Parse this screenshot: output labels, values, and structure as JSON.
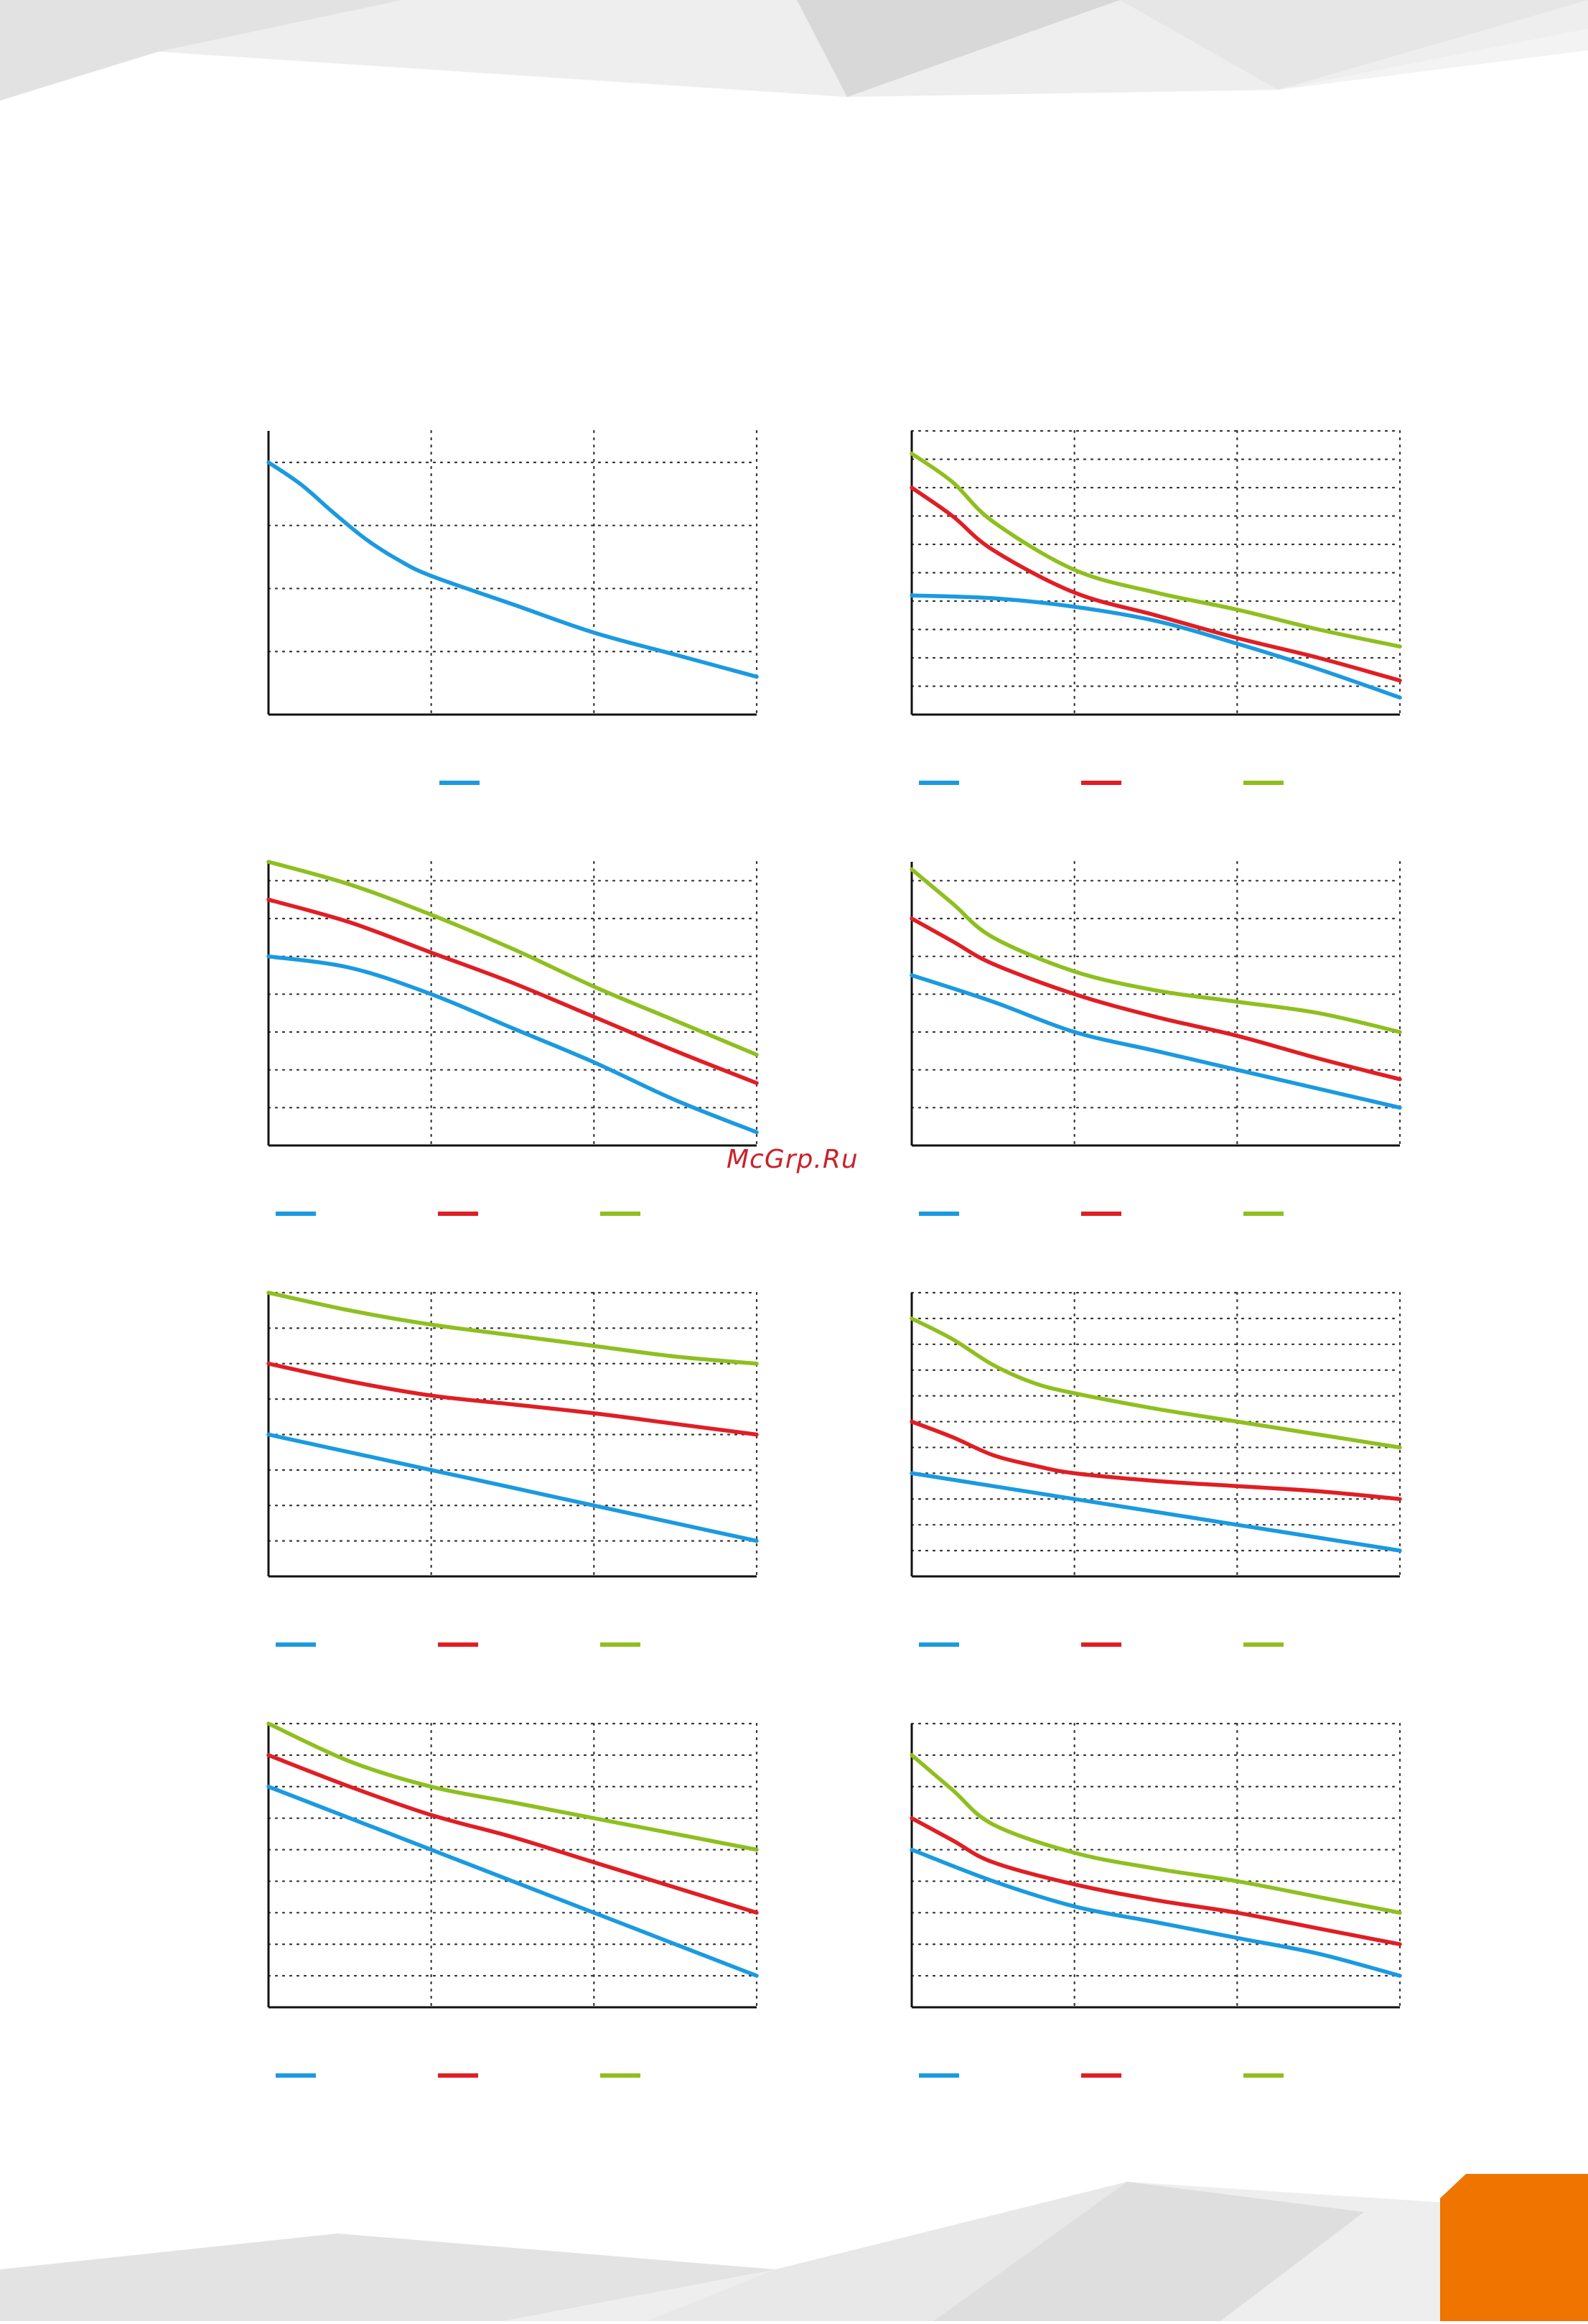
{
  "watermark": "McGrp.Ru",
  "colors": {
    "blue": "#1a9ae0",
    "red": "#e01e24",
    "green": "#8fbf1f",
    "axis": "#111111",
    "grid": "#333333",
    "accent_tab": "#ef7400"
  },
  "chart_data": [
    {
      "type": "line",
      "xlim": [
        0,
        3
      ],
      "ylim": [
        0,
        4.5
      ],
      "x_gridlines": [
        1,
        2,
        3
      ],
      "y_gridlines": [
        1,
        2,
        3,
        4
      ],
      "grid": true,
      "legend": "bottom",
      "series": [
        {
          "color": "#1a9ae0",
          "x": [
            0,
            0.2,
            0.4,
            0.6,
            0.8,
            1,
            1.5,
            2,
            2.5,
            3
          ],
          "y": [
            4.0,
            3.65,
            3.2,
            2.78,
            2.45,
            2.2,
            1.75,
            1.3,
            0.95,
            0.6
          ]
        }
      ]
    },
    {
      "type": "line",
      "xlim": [
        0,
        3
      ],
      "ylim": [
        0,
        10
      ],
      "x_gridlines": [
        1,
        2,
        3
      ],
      "y_gridlines": [
        1,
        2,
        3,
        4,
        5,
        6,
        7,
        8,
        9,
        10
      ],
      "grid": true,
      "legend": "bottom",
      "series": [
        {
          "color": "#1a9ae0",
          "x": [
            0,
            0.5,
            1,
            1.5,
            2,
            2.5,
            3
          ],
          "y": [
            4.2,
            4.1,
            3.8,
            3.3,
            2.5,
            1.6,
            0.6
          ]
        },
        {
          "color": "#e01e24",
          "x": [
            0,
            0.25,
            0.5,
            1,
            1.5,
            2,
            2.5,
            3
          ],
          "y": [
            8.0,
            7.0,
            5.8,
            4.3,
            3.5,
            2.7,
            2.0,
            1.2
          ]
        },
        {
          "color": "#8fbf1f",
          "x": [
            0,
            0.25,
            0.5,
            1,
            1.5,
            2,
            2.5,
            3
          ],
          "y": [
            9.2,
            8.2,
            6.8,
            5.1,
            4.3,
            3.7,
            3.0,
            2.4
          ]
        }
      ]
    },
    {
      "type": "line",
      "xlim": [
        0,
        3
      ],
      "ylim": [
        0,
        7.5
      ],
      "x_gridlines": [
        1,
        2,
        3
      ],
      "y_gridlines": [
        1,
        2,
        3,
        4,
        5,
        6,
        7
      ],
      "grid": true,
      "legend": "bottom",
      "series": [
        {
          "color": "#1a9ae0",
          "x": [
            0,
            0.5,
            1,
            1.5,
            2,
            2.5,
            3
          ],
          "y": [
            5.0,
            4.7,
            4.0,
            3.1,
            2.2,
            1.2,
            0.35
          ]
        },
        {
          "color": "#e01e24",
          "x": [
            0,
            0.5,
            1,
            1.5,
            2,
            2.5,
            3
          ],
          "y": [
            6.5,
            5.9,
            5.1,
            4.3,
            3.4,
            2.5,
            1.65
          ]
        },
        {
          "color": "#8fbf1f",
          "x": [
            0,
            0.5,
            1,
            1.5,
            2,
            2.5,
            3
          ],
          "y": [
            7.5,
            6.9,
            6.1,
            5.2,
            4.2,
            3.3,
            2.4
          ]
        }
      ]
    },
    {
      "type": "line",
      "xlim": [
        0,
        3
      ],
      "ylim": [
        0,
        7.5
      ],
      "x_gridlines": [
        1,
        2,
        3
      ],
      "y_gridlines": [
        1,
        2,
        3,
        4,
        5,
        6,
        7
      ],
      "grid": true,
      "legend": "bottom",
      "series": [
        {
          "color": "#1a9ae0",
          "x": [
            0,
            0.5,
            1,
            1.5,
            2,
            2.5,
            3
          ],
          "y": [
            4.5,
            3.8,
            3.0,
            2.5,
            2.0,
            1.5,
            1.0
          ]
        },
        {
          "color": "#e01e24",
          "x": [
            0,
            0.25,
            0.5,
            1,
            1.5,
            2,
            2.5,
            3
          ],
          "y": [
            6.0,
            5.4,
            4.8,
            4.0,
            3.4,
            2.9,
            2.3,
            1.75
          ]
        },
        {
          "color": "#8fbf1f",
          "x": [
            0,
            0.25,
            0.5,
            1,
            1.5,
            2,
            2.5,
            3
          ],
          "y": [
            7.3,
            6.4,
            5.5,
            4.6,
            4.1,
            3.8,
            3.5,
            3.0
          ]
        }
      ]
    },
    {
      "type": "line",
      "xlim": [
        0,
        3
      ],
      "ylim": [
        0,
        8
      ],
      "x_gridlines": [
        1,
        2,
        3
      ],
      "y_gridlines": [
        1,
        2,
        3,
        4,
        5,
        6,
        7,
        8
      ],
      "grid": true,
      "legend": "bottom",
      "series": [
        {
          "color": "#1a9ae0",
          "x": [
            0,
            1,
            2,
            3
          ],
          "y": [
            4.0,
            3.0,
            2.0,
            1.0
          ]
        },
        {
          "color": "#e01e24",
          "x": [
            0,
            0.5,
            1,
            1.5,
            2,
            2.5,
            3
          ],
          "y": [
            6.0,
            5.5,
            5.1,
            4.85,
            4.6,
            4.3,
            4.0
          ]
        },
        {
          "color": "#8fbf1f",
          "x": [
            0,
            0.5,
            1,
            1.5,
            2,
            2.5,
            3
          ],
          "y": [
            8.0,
            7.5,
            7.1,
            6.8,
            6.5,
            6.2,
            6.0
          ]
        }
      ]
    },
    {
      "type": "line",
      "xlim": [
        0,
        3
      ],
      "ylim": [
        0,
        11
      ],
      "x_gridlines": [
        1,
        2,
        3
      ],
      "y_gridlines": [
        1,
        2,
        3,
        4,
        5,
        6,
        7,
        8,
        9,
        10,
        11
      ],
      "grid": true,
      "legend": "bottom",
      "series": [
        {
          "color": "#1a9ae0",
          "x": [
            0,
            0.5,
            1,
            1.5,
            2,
            2.5,
            3
          ],
          "y": [
            4.0,
            3.5,
            3.0,
            2.5,
            2.0,
            1.5,
            1.0
          ]
        },
        {
          "color": "#e01e24",
          "x": [
            0,
            0.25,
            0.5,
            0.75,
            1,
            1.5,
            2,
            2.5,
            3
          ],
          "y": [
            6.0,
            5.4,
            4.7,
            4.3,
            4.0,
            3.7,
            3.5,
            3.3,
            3.0
          ]
        },
        {
          "color": "#8fbf1f",
          "x": [
            0,
            0.25,
            0.5,
            0.75,
            1,
            1.5,
            2,
            2.5,
            3
          ],
          "y": [
            10.0,
            9.2,
            8.2,
            7.5,
            7.1,
            6.5,
            6.0,
            5.5,
            5.0
          ]
        }
      ]
    },
    {
      "type": "line",
      "xlim": [
        0,
        3
      ],
      "ylim": [
        0,
        9
      ],
      "x_gridlines": [
        1,
        2,
        3
      ],
      "y_gridlines": [
        1,
        2,
        3,
        4,
        5,
        6,
        7,
        8,
        9
      ],
      "grid": true,
      "legend": "bottom",
      "series": [
        {
          "color": "#1a9ae0",
          "x": [
            0,
            1,
            2,
            3
          ],
          "y": [
            7.0,
            5.0,
            3.0,
            1.0
          ]
        },
        {
          "color": "#e01e24",
          "x": [
            0,
            0.5,
            1,
            1.5,
            2,
            2.5,
            3
          ],
          "y": [
            8.0,
            7.0,
            6.1,
            5.4,
            4.6,
            3.8,
            3.0
          ]
        },
        {
          "color": "#8fbf1f",
          "x": [
            0,
            0.5,
            1,
            1.5,
            2,
            2.5,
            3
          ],
          "y": [
            9.0,
            7.8,
            7.0,
            6.5,
            6.0,
            5.5,
            5.0
          ]
        }
      ]
    },
    {
      "type": "line",
      "xlim": [
        0,
        3
      ],
      "ylim": [
        0,
        9
      ],
      "x_gridlines": [
        1,
        2,
        3
      ],
      "y_gridlines": [
        1,
        2,
        3,
        4,
        5,
        6,
        7,
        8,
        9
      ],
      "grid": true,
      "legend": "bottom",
      "series": [
        {
          "color": "#1a9ae0",
          "x": [
            0,
            0.5,
            1,
            1.5,
            2,
            2.5,
            3
          ],
          "y": [
            5.0,
            4.0,
            3.2,
            2.7,
            2.2,
            1.7,
            1.0
          ]
        },
        {
          "color": "#e01e24",
          "x": [
            0,
            0.25,
            0.5,
            1,
            1.5,
            2,
            2.5,
            3
          ],
          "y": [
            6.0,
            5.3,
            4.6,
            3.9,
            3.4,
            3.0,
            2.5,
            2.0
          ]
        },
        {
          "color": "#8fbf1f",
          "x": [
            0,
            0.25,
            0.5,
            1,
            1.5,
            2,
            2.5,
            3
          ],
          "y": [
            8.0,
            6.9,
            5.8,
            4.9,
            4.4,
            4.0,
            3.5,
            3.0
          ]
        }
      ]
    }
  ]
}
